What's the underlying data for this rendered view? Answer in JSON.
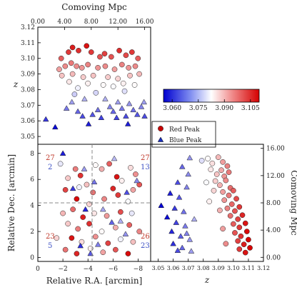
{
  "chart_data": [
    {
      "panel": "top-left",
      "type": "scatter",
      "xlabel_top": "Comoving Mpc",
      "x_ticks_top": [
        "0.00",
        "4.00",
        "8.00",
        "12.00",
        "16.00"
      ],
      "ylabel": "z",
      "y_ticks": [
        "3.05",
        "3.06",
        "3.07",
        "3.08",
        "3.09",
        "3.10",
        "3.11",
        "3.12"
      ],
      "ylim": [
        3.045,
        3.12
      ],
      "xlim": [
        0,
        16.9
      ],
      "colorbar": {
        "ticks": [
          "3.060",
          "3.075",
          "3.090",
          "3.105"
        ],
        "range": [
          3.055,
          3.11
        ]
      },
      "legend": [
        "Red Peak",
        "Blue Peak"
      ],
      "legend_placement": "right",
      "red_points": [
        [
          3.5,
          3.1
        ],
        [
          4.6,
          3.104
        ],
        [
          5.2,
          3.107
        ],
        [
          6.1,
          3.105
        ],
        [
          7.3,
          3.108
        ],
        [
          8.0,
          3.104
        ],
        [
          9.3,
          3.101
        ],
        [
          10.0,
          3.103
        ],
        [
          11.0,
          3.101
        ],
        [
          12.2,
          3.105
        ],
        [
          13.2,
          3.102
        ],
        [
          14.1,
          3.104
        ],
        [
          15.0,
          3.1
        ],
        [
          3.2,
          3.093
        ],
        [
          4.1,
          3.095
        ],
        [
          5.0,
          3.097
        ],
        [
          5.8,
          3.095
        ],
        [
          6.6,
          3.094
        ],
        [
          7.5,
          3.096
        ],
        [
          9.0,
          3.094
        ],
        [
          10.1,
          3.095
        ],
        [
          11.5,
          3.093
        ],
        [
          12.6,
          3.096
        ],
        [
          13.6,
          3.094
        ],
        [
          14.6,
          3.095
        ],
        [
          3.6,
          3.089
        ],
        [
          5.2,
          3.09
        ],
        [
          6.8,
          3.088
        ],
        [
          8.3,
          3.089
        ],
        [
          10.5,
          3.088
        ],
        [
          12.0,
          3.087
        ],
        [
          13.8,
          3.089
        ],
        [
          15.2,
          3.09
        ],
        [
          4.7,
          3.085
        ],
        [
          7.5,
          3.084
        ],
        [
          9.8,
          3.083
        ],
        [
          12.8,
          3.084
        ],
        [
          14.5,
          3.083
        ],
        [
          6.0,
          3.081
        ],
        [
          11.3,
          3.082
        ],
        [
          5.5,
          3.077
        ],
        [
          8.7,
          3.078
        ],
        [
          13.0,
          3.079
        ]
      ],
      "blue_points": [
        [
          1.2,
          3.061
        ],
        [
          2.6,
          3.056
        ],
        [
          4.3,
          3.068
        ],
        [
          5.1,
          3.072
        ],
        [
          6.0,
          3.066
        ],
        [
          6.7,
          3.063
        ],
        [
          7.6,
          3.058
        ],
        [
          8.2,
          3.064
        ],
        [
          9.0,
          3.067
        ],
        [
          10.1,
          3.074
        ],
        [
          10.8,
          3.069
        ],
        [
          11.3,
          3.066
        ],
        [
          12.0,
          3.072
        ],
        [
          12.6,
          3.068
        ],
        [
          13.2,
          3.063
        ],
        [
          13.7,
          3.071
        ],
        [
          14.3,
          3.067
        ],
        [
          14.9,
          3.064
        ],
        [
          15.5,
          3.069
        ],
        [
          15.9,
          3.072
        ],
        [
          13.5,
          3.058
        ],
        [
          16.0,
          3.063
        ],
        [
          11.8,
          3.062
        ],
        [
          7.0,
          3.074
        ],
        [
          9.5,
          3.062
        ]
      ]
    },
    {
      "panel": "bottom-left",
      "type": "scatter",
      "xlabel": "Relative R.A. [arcmin]",
      "ylabel": "Relative Dec. [arcmin]",
      "x_ticks": [
        "0",
        "−2",
        "−4",
        "−6",
        "−8"
      ],
      "y_ticks": [
        "0",
        "2",
        "4",
        "6",
        "8"
      ],
      "xlim": [
        0,
        -9
      ],
      "ylim": [
        -0.3,
        8.7
      ],
      "annotations": {
        "tl": [
          "27",
          "2"
        ],
        "tr": [
          "27",
          "13"
        ],
        "bl": [
          "23",
          "5"
        ],
        "br": [
          "26",
          "23"
        ]
      },
      "red_points": [
        [
          -1.8,
          7.2
        ],
        [
          -2.4,
          6.1
        ],
        [
          -3.0,
          6.8
        ],
        [
          -3.4,
          6.3
        ],
        [
          -4.6,
          7.1
        ],
        [
          -5.1,
          6.8
        ],
        [
          -5.7,
          7.2
        ],
        [
          -6.3,
          6.2
        ],
        [
          -7.4,
          6.9
        ],
        [
          -7.8,
          6.4
        ],
        [
          -2.2,
          5.2
        ],
        [
          -3.3,
          5.4
        ],
        [
          -3.9,
          5.6
        ],
        [
          -4.4,
          5.0
        ],
        [
          -6.0,
          5.3
        ],
        [
          -6.7,
          5.9
        ],
        [
          -7.6,
          5.2
        ],
        [
          -8.1,
          5.6
        ],
        [
          -3.1,
          4.5
        ],
        [
          -4.1,
          4.1
        ],
        [
          -5.3,
          4.5
        ],
        [
          -6.4,
          4.8
        ],
        [
          -7.2,
          4.3
        ],
        [
          -2.0,
          3.4
        ],
        [
          -2.8,
          3.7
        ],
        [
          -3.6,
          3.1
        ],
        [
          -4.5,
          3.4
        ],
        [
          -5.5,
          3.2
        ],
        [
          -6.6,
          3.5
        ],
        [
          -7.5,
          3.4
        ],
        [
          -2.4,
          2.6
        ],
        [
          -3.2,
          2.2
        ],
        [
          -4.1,
          2.6
        ],
        [
          -5.1,
          2.0
        ],
        [
          -6.2,
          2.3
        ],
        [
          -7.3,
          2.5
        ],
        [
          -2.7,
          1.5
        ],
        [
          -3.5,
          1.2
        ],
        [
          -4.6,
          1.6
        ],
        [
          -5.6,
          1.1
        ],
        [
          -6.6,
          1.4
        ],
        [
          -7.6,
          1.2
        ],
        [
          -2.2,
          0.6
        ],
        [
          -3.1,
          0.3
        ],
        [
          -4.2,
          0.7
        ],
        [
          -5.2,
          0.4
        ],
        [
          -6.2,
          0.6
        ],
        [
          -7.2,
          0.3
        ],
        [
          -1.5,
          1.5
        ],
        [
          -8.1,
          2.0
        ]
      ],
      "blue_points": [
        [
          -2.0,
          8.0
        ],
        [
          -3.7,
          6.8
        ],
        [
          -4.5,
          5.8
        ],
        [
          -7.1,
          5.0
        ],
        [
          -3.8,
          3.7
        ],
        [
          -5.2,
          3.7
        ],
        [
          -4.8,
          1.0
        ],
        [
          -4.2,
          0.3
        ],
        [
          -3.4,
          0.9
        ],
        [
          -6.6,
          2.8
        ],
        [
          -7.9,
          5.9
        ],
        [
          -5.9,
          2.7
        ],
        [
          -2.8,
          5.3
        ],
        [
          -6.1,
          7.6
        ],
        [
          -7.0,
          1.8
        ]
      ]
    },
    {
      "panel": "bottom-right",
      "type": "scatter",
      "xlabel": "z",
      "ylabel_right": "Comoving Mpc",
      "x_ticks": [
        "3.05",
        "3.06",
        "3.07",
        "3.08",
        "3.09",
        "3.10",
        "3.11",
        "3.12"
      ],
      "y_ticks_right": [
        "0.00",
        "4.00",
        "8.00",
        "12.00",
        "16.00"
      ],
      "xlim": [
        3.045,
        3.12
      ],
      "ylim": [
        -0.6,
        16.6
      ],
      "red_points": [
        [
          3.079,
          14.2
        ],
        [
          3.083,
          14.5
        ],
        [
          3.086,
          13.8
        ],
        [
          3.09,
          14.7
        ],
        [
          3.093,
          14.0
        ],
        [
          3.096,
          13.4
        ],
        [
          3.085,
          12.9
        ],
        [
          3.089,
          12.2
        ],
        [
          3.092,
          12.8
        ],
        [
          3.094,
          11.9
        ],
        [
          3.097,
          12.5
        ],
        [
          3.088,
          11.2
        ],
        [
          3.091,
          10.6
        ],
        [
          3.095,
          11.3
        ],
        [
          3.098,
          10.2
        ],
        [
          3.093,
          9.6
        ],
        [
          3.097,
          9.1
        ],
        [
          3.1,
          9.8
        ],
        [
          3.094,
          8.4
        ],
        [
          3.099,
          7.8
        ],
        [
          3.102,
          8.6
        ],
        [
          3.096,
          7.2
        ],
        [
          3.101,
          6.8
        ],
        [
          3.104,
          7.4
        ],
        [
          3.098,
          6.1
        ],
        [
          3.103,
          5.6
        ],
        [
          3.106,
          6.2
        ],
        [
          3.1,
          4.9
        ],
        [
          3.104,
          4.4
        ],
        [
          3.108,
          5.0
        ],
        [
          3.101,
          3.6
        ],
        [
          3.105,
          3.1
        ],
        [
          3.109,
          3.8
        ],
        [
          3.103,
          2.4
        ],
        [
          3.107,
          1.9
        ],
        [
          3.11,
          2.6
        ],
        [
          3.104,
          1.2
        ],
        [
          3.108,
          0.7
        ],
        [
          3.111,
          1.4
        ],
        [
          3.082,
          11.0
        ],
        [
          3.087,
          9.8
        ],
        [
          3.084,
          8.2
        ],
        [
          3.091,
          6.9
        ],
        [
          3.093,
          4.2
        ],
        [
          3.095,
          2.0
        ]
      ],
      "blue_points": [
        [
          3.071,
          14.6
        ],
        [
          3.066,
          13.3
        ],
        [
          3.07,
          12.2
        ],
        [
          3.063,
          11.0
        ],
        [
          3.069,
          10.3
        ],
        [
          3.058,
          9.4
        ],
        [
          3.064,
          8.8
        ],
        [
          3.052,
          7.6
        ],
        [
          3.061,
          7.2
        ],
        [
          3.067,
          6.7
        ],
        [
          3.056,
          5.9
        ],
        [
          3.062,
          5.1
        ],
        [
          3.068,
          4.6
        ],
        [
          3.059,
          3.8
        ],
        [
          3.065,
          3.1
        ],
        [
          3.071,
          2.6
        ],
        [
          3.06,
          2.0
        ],
        [
          3.066,
          1.4
        ],
        [
          3.072,
          0.9
        ],
        [
          3.069,
          3.5
        ],
        [
          3.074,
          5.6
        ],
        [
          3.063,
          1.0
        ]
      ]
    }
  ]
}
